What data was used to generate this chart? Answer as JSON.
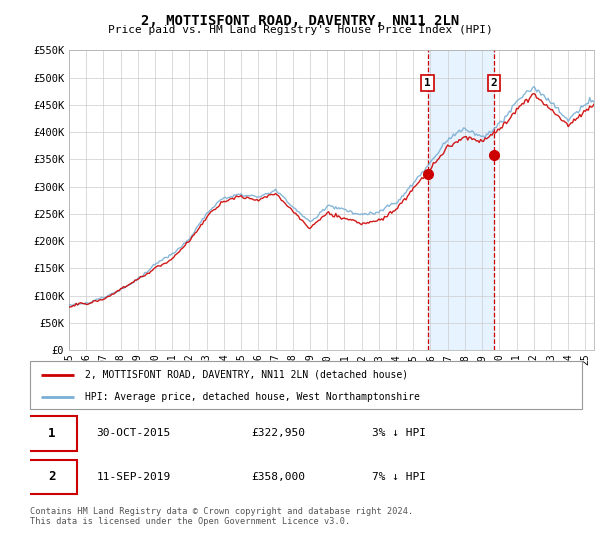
{
  "title": "2, MOTTISFONT ROAD, DAVENTRY, NN11 2LN",
  "subtitle": "Price paid vs. HM Land Registry's House Price Index (HPI)",
  "ylim": [
    0,
    550000
  ],
  "yticks": [
    0,
    50000,
    100000,
    150000,
    200000,
    250000,
    300000,
    350000,
    400000,
    450000,
    500000,
    550000
  ],
  "ytick_labels": [
    "£0",
    "£50K",
    "£100K",
    "£150K",
    "£200K",
    "£250K",
    "£300K",
    "£350K",
    "£400K",
    "£450K",
    "£500K",
    "£550K"
  ],
  "xlim_start": 1995.0,
  "xlim_end": 2025.5,
  "sale1_x": 2015.83,
  "sale1_y": 322950,
  "sale2_x": 2019.69,
  "sale2_y": 358000,
  "sale1_date": "30-OCT-2015",
  "sale1_price": "£322,950",
  "sale1_hpi": "3% ↓ HPI",
  "sale2_date": "11-SEP-2019",
  "sale2_price": "£358,000",
  "sale2_hpi": "7% ↓ HPI",
  "line_price_color": "#cc0000",
  "line_hpi_color": "#7bafd4",
  "shade_color": "#ddeeff",
  "grid_color": "#cccccc",
  "legend_line1": "2, MOTTISFONT ROAD, DAVENTRY, NN11 2LN (detached house)",
  "legend_line2": "HPI: Average price, detached house, West Northamptonshire",
  "footnote": "Contains HM Land Registry data © Crown copyright and database right 2024.\nThis data is licensed under the Open Government Licence v3.0."
}
